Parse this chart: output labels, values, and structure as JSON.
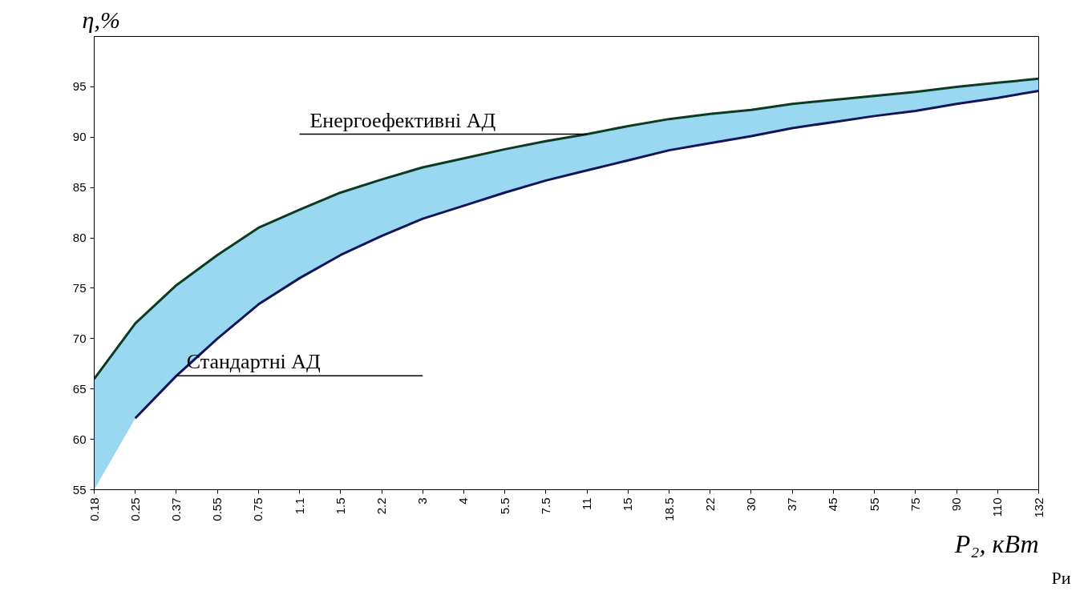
{
  "chart_data": {
    "type": "line",
    "xlabel": "P₂, кВт",
    "ylabel": "η,%",
    "categories": [
      "0.18",
      "0.25",
      "0.37",
      "0.55",
      "0.75",
      "1.1",
      "1.5",
      "2.2",
      "3",
      "4",
      "5.5",
      "7.5",
      "11",
      "15",
      "18.5",
      "22",
      "30",
      "37",
      "45",
      "55",
      "75",
      "90",
      "110",
      "132"
    ],
    "series": [
      {
        "color": "#0d3b22",
        "values": [
          66.0,
          71.5,
          75.3,
          78.3,
          81.0,
          82.8,
          84.5,
          85.8,
          87.0,
          87.9,
          88.8,
          89.6,
          90.3,
          91.1,
          91.8,
          92.3,
          92.7,
          93.3,
          93.7,
          94.1,
          94.5,
          95.0,
          95.4,
          95.8
        ],
        "lower": [
          55.0,
          62.1,
          66.3,
          70.0,
          73.4,
          76.0,
          78.3,
          80.2,
          81.9,
          83.2,
          84.5,
          85.7,
          86.7,
          87.7,
          88.7,
          89.4,
          90.1,
          90.9,
          91.5,
          92.1,
          92.6,
          93.3,
          93.9,
          94.6
        ],
        "upper": [
          66.0,
          71.5,
          75.3,
          78.3,
          81.0,
          82.8,
          84.5,
          85.8,
          87.0,
          87.9,
          88.8,
          89.6,
          90.3,
          91.1,
          91.8,
          92.3,
          92.7,
          93.3,
          93.7,
          94.1,
          94.5,
          95.0,
          95.4,
          95.8
        ]
      },
      {
        "color": "#14145a",
        "values": [
          null,
          62.1,
          66.3,
          70.0,
          73.4,
          76.0,
          78.3,
          80.2,
          81.9,
          83.2,
          84.5,
          85.7,
          86.7,
          87.7,
          88.7,
          89.4,
          90.1,
          90.9,
          91.5,
          92.1,
          92.6,
          93.3,
          93.9,
          94.6
        ]
      }
    ],
    "ylim": [
      55,
      100
    ],
    "yticks": [
      55,
      60,
      65,
      70,
      75,
      80,
      85,
      90,
      95
    ],
    "grid": false,
    "annotations": [
      {
        "text": "Енергоефективні АД",
        "x": "11",
        "y": 90.3
      },
      {
        "text": "Стандартні АД",
        "x": "0.37",
        "y": 66.3
      },
      "Ри"
    ]
  }
}
